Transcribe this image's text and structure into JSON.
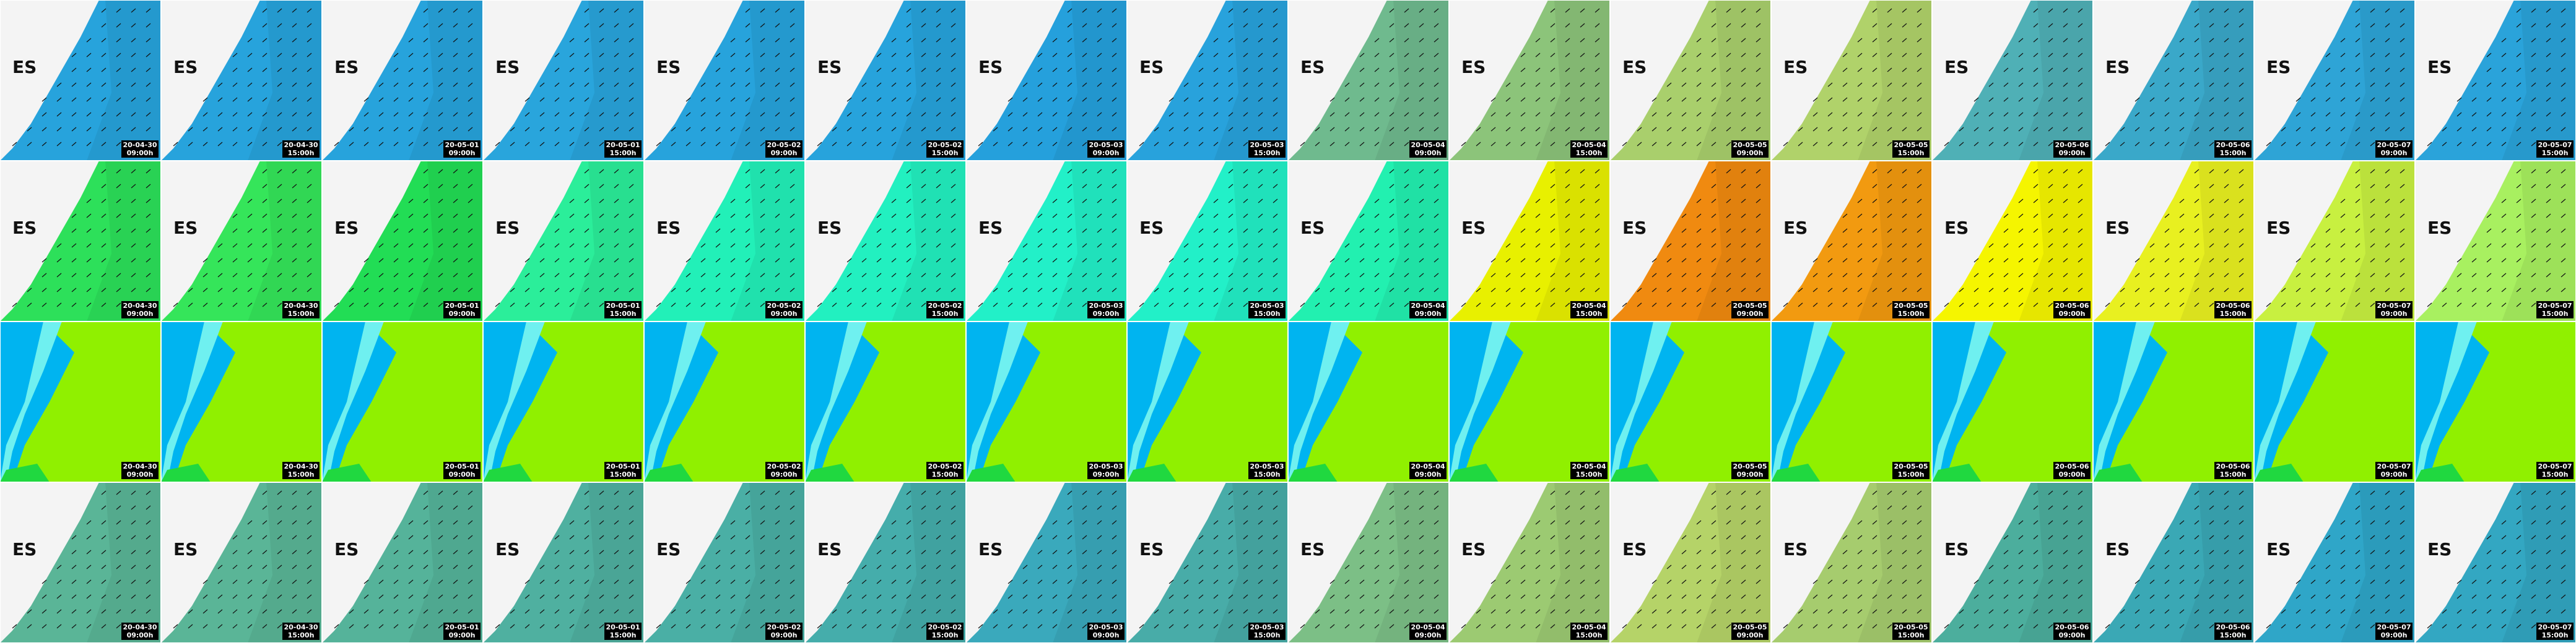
{
  "rows": [
    {
      "label": "ES"
    },
    {
      "label": "ES"
    },
    {},
    {
      "label": "ES"
    }
  ],
  "frames": [
    {
      "date": "20-04-30",
      "time": "09:00h"
    },
    {
      "date": "20-04-30",
      "time": "15:00h"
    },
    {
      "date": "20-05-01",
      "time": "09:00h"
    },
    {
      "date": "20-05-01",
      "time": "15:00h"
    },
    {
      "date": "20-05-02",
      "time": "09:00h"
    },
    {
      "date": "20-05-02",
      "time": "15:00h"
    },
    {
      "date": "20-05-03",
      "time": "09:00h"
    },
    {
      "date": "20-05-03",
      "time": "15:00h"
    },
    {
      "date": "20-05-04",
      "time": "09:00h"
    },
    {
      "date": "20-05-04",
      "time": "15:00h"
    },
    {
      "date": "20-05-05",
      "time": "09:00h"
    },
    {
      "date": "20-05-05",
      "time": "15:00h"
    },
    {
      "date": "20-05-06",
      "time": "09:00h"
    },
    {
      "date": "20-05-06",
      "time": "15:00h"
    },
    {
      "date": "20-05-07",
      "time": "09:00h"
    },
    {
      "date": "20-05-07",
      "time": "15:00h"
    }
  ]
}
